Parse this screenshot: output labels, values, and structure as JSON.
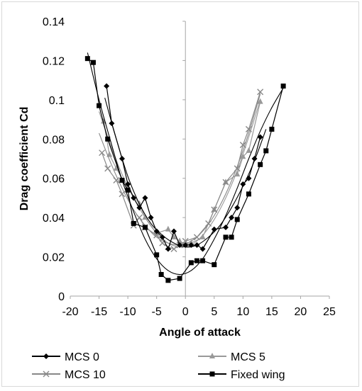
{
  "chart_data": {
    "type": "scatter",
    "xlabel": "Angle of attack",
    "ylabel": "Drag coefficient Cd",
    "xlim": [
      -20,
      25
    ],
    "ylim": [
      0,
      0.14
    ],
    "xticks": [
      "-20",
      "-15",
      "-10",
      "-5",
      "0",
      "5",
      "10",
      "15",
      "20",
      "25"
    ],
    "yticks": [
      "0",
      "0.02",
      "0.04",
      "0.06",
      "0.08",
      "0.1",
      "0.12",
      "0.14"
    ],
    "grid": false,
    "legend_position": "bottom",
    "series": [
      {
        "name": "MCS 0",
        "color": "#000000",
        "marker": "diamond",
        "points": [
          [
            -13.7,
            0.107
          ],
          [
            -12.8,
            0.088
          ],
          [
            -11,
            0.07
          ],
          [
            -10,
            0.057
          ],
          [
            -9,
            0.05
          ],
          [
            -8,
            0.045
          ],
          [
            -7,
            0.05
          ],
          [
            -6,
            0.04
          ],
          [
            -5,
            0.033
          ],
          [
            -4,
            0.03
          ],
          [
            -3,
            0.024
          ],
          [
            -2,
            0.033
          ],
          [
            -1,
            0.026
          ],
          [
            0,
            0.026
          ],
          [
            1,
            0.026
          ],
          [
            2,
            0.026
          ],
          [
            3,
            0.024
          ],
          [
            5,
            0.034
          ],
          [
            7,
            0.035
          ],
          [
            8,
            0.04
          ],
          [
            9,
            0.045
          ],
          [
            10,
            0.057
          ],
          [
            11,
            0.06
          ],
          [
            12,
            0.07
          ],
          [
            13,
            0.081
          ]
        ],
        "fit": [
          [
            -14,
            0.101
          ],
          [
            -12,
            0.08
          ],
          [
            -10,
            0.061
          ],
          [
            -8,
            0.047
          ],
          [
            -6,
            0.037
          ],
          [
            -4,
            0.031
          ],
          [
            -2,
            0.027
          ],
          [
            0,
            0.025
          ],
          [
            2,
            0.026
          ],
          [
            4,
            0.03
          ],
          [
            6,
            0.036
          ],
          [
            8,
            0.045
          ],
          [
            10,
            0.056
          ],
          [
            12,
            0.069
          ],
          [
            14,
            0.085
          ]
        ]
      },
      {
        "name": "MCS 5",
        "color": "#999999",
        "marker": "triangle",
        "points": [
          [
            -14.2,
            0.089
          ],
          [
            -13.2,
            0.072
          ],
          [
            -12,
            0.065
          ],
          [
            -10,
            0.055
          ],
          [
            -8,
            0.047
          ],
          [
            -7,
            0.04
          ],
          [
            -5,
            0.032
          ],
          [
            -3,
            0.034
          ],
          [
            -2,
            0.03
          ],
          [
            -1,
            0.028
          ],
          [
            0,
            0.026
          ],
          [
            1,
            0.027
          ],
          [
            3,
            0.03
          ],
          [
            5,
            0.044
          ],
          [
            7,
            0.058
          ],
          [
            9,
            0.062
          ],
          [
            10,
            0.071
          ],
          [
            11,
            0.074
          ],
          [
            13,
            0.099
          ]
        ],
        "fit": [
          [
            -15,
            0.094
          ],
          [
            -13,
            0.077
          ],
          [
            -11,
            0.062
          ],
          [
            -9,
            0.05
          ],
          [
            -7,
            0.04
          ],
          [
            -5,
            0.032
          ],
          [
            -3,
            0.027
          ],
          [
            -1,
            0.025
          ],
          [
            1,
            0.026
          ],
          [
            3,
            0.031
          ],
          [
            5,
            0.039
          ],
          [
            7,
            0.05
          ],
          [
            9,
            0.064
          ],
          [
            11,
            0.081
          ],
          [
            13,
            0.1
          ]
        ]
      },
      {
        "name": "MCS 10",
        "color": "#888888",
        "marker": "x",
        "points": [
          [
            -14.5,
            0.073
          ],
          [
            -13.5,
            0.065
          ],
          [
            -12,
            0.059
          ],
          [
            -11,
            0.052
          ],
          [
            -9,
            0.036
          ],
          [
            -8,
            0.04
          ],
          [
            -7,
            0.035
          ],
          [
            -5,
            0.031
          ],
          [
            -4,
            0.027
          ],
          [
            -3,
            0.025
          ],
          [
            -2,
            0.024
          ],
          [
            -1,
            0.026
          ],
          [
            0,
            0.028
          ],
          [
            2,
            0.03
          ],
          [
            4,
            0.037
          ],
          [
            5,
            0.044
          ],
          [
            7,
            0.058
          ],
          [
            9,
            0.065
          ],
          [
            10,
            0.077
          ],
          [
            11,
            0.085
          ],
          [
            13,
            0.104
          ]
        ],
        "fit": [
          [
            -15,
            0.083
          ],
          [
            -13,
            0.068
          ],
          [
            -11,
            0.055
          ],
          [
            -9,
            0.044
          ],
          [
            -7,
            0.036
          ],
          [
            -5,
            0.03
          ],
          [
            -3,
            0.027
          ],
          [
            -1,
            0.026
          ],
          [
            1,
            0.028
          ],
          [
            3,
            0.033
          ],
          [
            5,
            0.041
          ],
          [
            7,
            0.052
          ],
          [
            9,
            0.066
          ],
          [
            11,
            0.083
          ],
          [
            13,
            0.103
          ]
        ]
      },
      {
        "name": "Fixed wing",
        "color": "#000000",
        "marker": "square",
        "points": [
          [
            -17,
            0.121
          ],
          [
            -16,
            0.119
          ],
          [
            -15,
            0.097
          ],
          [
            -13.5,
            0.08
          ],
          [
            -11,
            0.059
          ],
          [
            -10,
            0.054
          ],
          [
            -9,
            0.037
          ],
          [
            -7,
            0.035
          ],
          [
            -5,
            0.021
          ],
          [
            -4.2,
            0.011
          ],
          [
            -3,
            0.008
          ],
          [
            -1,
            0.009
          ],
          [
            1,
            0.017
          ],
          [
            2,
            0.018
          ],
          [
            3,
            0.018
          ],
          [
            5,
            0.016
          ],
          [
            7,
            0.03
          ],
          [
            8,
            0.03
          ],
          [
            9,
            0.039
          ],
          [
            11,
            0.052
          ],
          [
            13,
            0.067
          ],
          [
            14,
            0.074
          ],
          [
            15,
            0.085
          ],
          [
            17,
            0.107
          ]
        ],
        "fit": [
          [
            -17,
            0.124
          ],
          [
            -15,
            0.1
          ],
          [
            -13,
            0.079
          ],
          [
            -11,
            0.059
          ],
          [
            -9,
            0.043
          ],
          [
            -7,
            0.029
          ],
          [
            -5,
            0.019
          ],
          [
            -3,
            0.013
          ],
          [
            -1,
            0.011
          ],
          [
            1,
            0.013
          ],
          [
            3,
            0.019
          ],
          [
            5,
            0.029
          ],
          [
            7,
            0.041
          ],
          [
            9,
            0.055
          ],
          [
            11,
            0.07
          ],
          [
            13,
            0.084
          ],
          [
            15,
            0.096
          ],
          [
            17,
            0.106
          ]
        ]
      }
    ]
  }
}
